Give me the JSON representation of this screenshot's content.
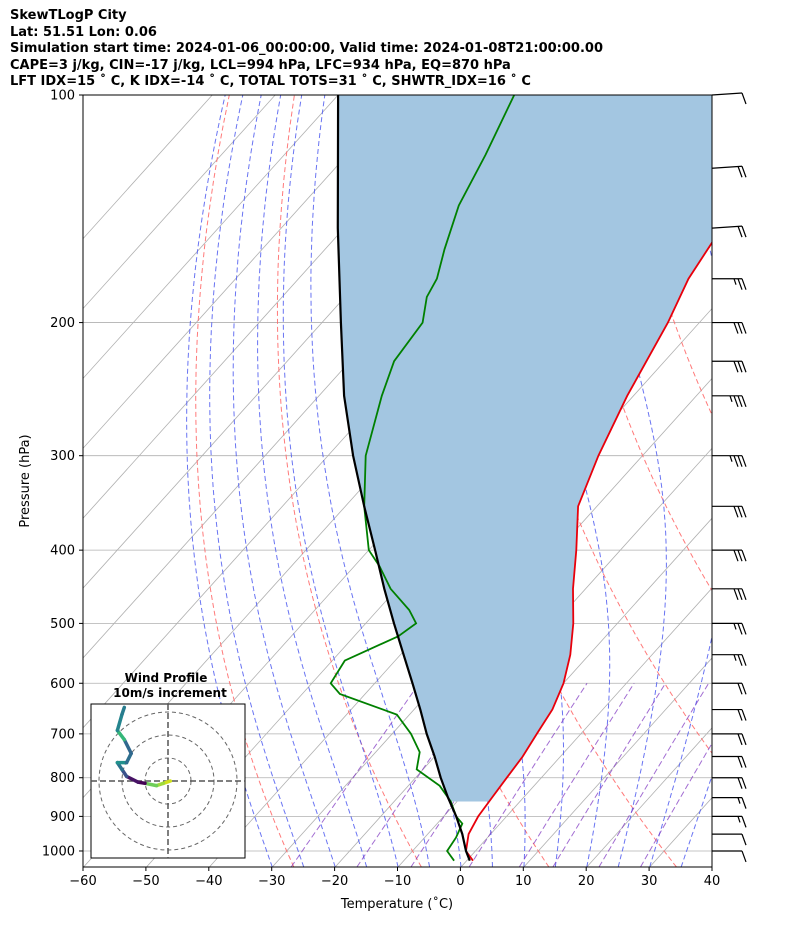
{
  "header": {
    "line1": "SkewTLogP City",
    "line2": "Lat: 51.51   Lon: 0.06",
    "line3": "Simulation start time: 2024-01-06_00:00:00, Valid time: 2024-01-08T21:00:00.00",
    "line4": "CAPE=3 j/kg, CIN=-17 j/kg, LCL=994 hPa, LFC=934 hPa, EQ=870 hPa",
    "line5": "LFT IDX=15 ˚ C, K IDX=-14 ˚ C, TOTAL TOTS=31 ˚ C, SHWTR_IDX=16 ˚ C"
  },
  "chart_data": {
    "type": "line",
    "xlabel": "Temperature (˚C)",
    "ylabel": "Pressure (hPa)",
    "xlim": [
      -60,
      40
    ],
    "ylim": [
      1050,
      100
    ],
    "y_scale": "log",
    "skew": true,
    "grid": true,
    "x_ticks": [
      "−60",
      "−50",
      "−40",
      "−30",
      "−20",
      "−10",
      "0",
      "10",
      "20",
      "30",
      "40"
    ],
    "y_ticks": [
      "100",
      "200",
      "300",
      "400",
      "500",
      "600",
      "700",
      "800",
      "900",
      "1000"
    ],
    "colors": {
      "temperature": "#e8000b",
      "dewpoint": "#008000",
      "parcel": "#000000",
      "cape_fill": "#a3c6e1",
      "dry_adiabats": "#ff6b6b",
      "moist_adiabats": "#4f5cf0",
      "mixing_ratio": "#7b2fbf",
      "isotherms": "#b0b0b0"
    },
    "series": [
      {
        "key": "temperature",
        "points": [
          [
            1030,
            1
          ],
          [
            1000,
            -1.5
          ],
          [
            950,
            -3.5
          ],
          [
            900,
            -4.5
          ],
          [
            850,
            -5
          ],
          [
            800,
            -5.5
          ],
          [
            750,
            -6
          ],
          [
            700,
            -7
          ],
          [
            650,
            -8
          ],
          [
            600,
            -10
          ],
          [
            550,
            -13
          ],
          [
            500,
            -17
          ],
          [
            450,
            -22
          ],
          [
            400,
            -27
          ],
          [
            350,
            -33
          ],
          [
            300,
            -37
          ],
          [
            250,
            -41
          ],
          [
            200,
            -45
          ],
          [
            175,
            -48
          ],
          [
            150,
            -50
          ],
          [
            125,
            -53
          ],
          [
            100,
            -55
          ]
        ]
      },
      {
        "key": "dewpoint",
        "points": [
          [
            1030,
            -2
          ],
          [
            1000,
            -4.5
          ],
          [
            960,
            -5
          ],
          [
            920,
            -6
          ],
          [
            900,
            -8
          ],
          [
            860,
            -11
          ],
          [
            820,
            -15
          ],
          [
            780,
            -21
          ],
          [
            740,
            -23
          ],
          [
            700,
            -27
          ],
          [
            660,
            -32
          ],
          [
            620,
            -44
          ],
          [
            600,
            -47
          ],
          [
            560,
            -48
          ],
          [
            520,
            -43
          ],
          [
            500,
            -42
          ],
          [
            480,
            -45
          ],
          [
            450,
            -51
          ],
          [
            420,
            -56
          ],
          [
            400,
            -60
          ],
          [
            350,
            -67
          ],
          [
            300,
            -74
          ],
          [
            250,
            -80
          ],
          [
            225,
            -83
          ],
          [
            200,
            -84
          ],
          [
            185,
            -87
          ],
          [
            175,
            -88
          ],
          [
            160,
            -91
          ],
          [
            140,
            -95
          ],
          [
            120,
            -98
          ],
          [
            100,
            -102
          ]
        ]
      },
      {
        "key": "parcel",
        "points": [
          [
            1030,
            0.5
          ],
          [
            1000,
            -1.5
          ],
          [
            950,
            -4.5
          ],
          [
            900,
            -8
          ],
          [
            850,
            -12
          ],
          [
            800,
            -16
          ],
          [
            750,
            -20
          ],
          [
            700,
            -24.5
          ],
          [
            650,
            -29
          ],
          [
            600,
            -34
          ],
          [
            550,
            -39.5
          ],
          [
            500,
            -45.5
          ],
          [
            450,
            -52
          ],
          [
            400,
            -59
          ],
          [
            350,
            -67
          ],
          [
            300,
            -76
          ],
          [
            250,
            -86
          ],
          [
            200,
            -97
          ],
          [
            150,
            -111
          ],
          [
            100,
            -130
          ]
        ]
      }
    ],
    "inset": {
      "title": "Wind Profile",
      "subtitle": "10m/s increment",
      "ring_step_ms": 10,
      "hodograph_uv": [
        [
          1,
          0
        ],
        [
          -2,
          -1
        ],
        [
          -5,
          -2
        ],
        [
          -10,
          -1
        ],
        [
          -13,
          -0.5
        ],
        [
          -18,
          2
        ],
        [
          -20,
          5
        ],
        [
          -22,
          8
        ],
        [
          -18,
          8
        ],
        [
          -16,
          12
        ],
        [
          -19,
          18
        ],
        [
          -22,
          22
        ],
        [
          -20,
          29
        ],
        [
          -19,
          32
        ]
      ]
    },
    "wind_barbs": [
      [
        100,
        "nw",
        12
      ],
      [
        125,
        "nw",
        18
      ],
      [
        150,
        "nw",
        22
      ],
      [
        175,
        "w",
        25
      ],
      [
        200,
        "w",
        28
      ],
      [
        225,
        "w",
        30
      ],
      [
        250,
        "w",
        33
      ],
      [
        300,
        "w",
        35
      ],
      [
        350,
        "w",
        32
      ],
      [
        400,
        "w",
        30
      ],
      [
        450,
        "w",
        28
      ],
      [
        500,
        "w",
        26
      ],
      [
        550,
        "w",
        24
      ],
      [
        600,
        "w",
        22
      ],
      [
        650,
        "w",
        20
      ],
      [
        700,
        "w",
        18
      ],
      [
        750,
        "w",
        18
      ],
      [
        800,
        "w",
        18
      ],
      [
        850,
        "w",
        16
      ],
      [
        900,
        "w",
        14
      ],
      [
        950,
        "w",
        12
      ],
      [
        1000,
        "w",
        10
      ]
    ]
  }
}
